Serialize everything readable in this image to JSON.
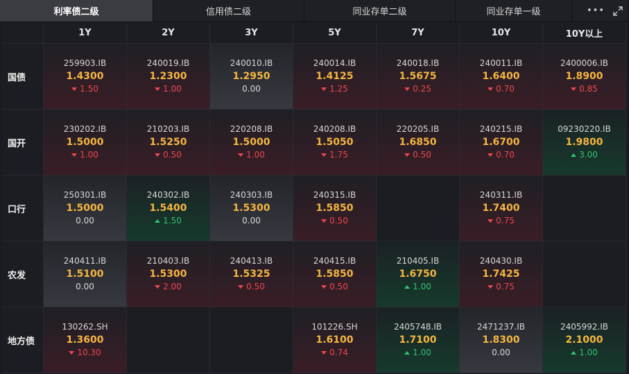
{
  "tabs": [
    {
      "label": "利率债二级",
      "active": true
    },
    {
      "label": "信用债二级",
      "active": false
    },
    {
      "label": "同业存单二级",
      "active": false
    },
    {
      "label": "同业存单一级",
      "active": false
    }
  ],
  "toolbar": {
    "more_label": "•••"
  },
  "columns": [
    "1Y",
    "2Y",
    "3Y",
    "5Y",
    "7Y",
    "10Y",
    "10Y以上"
  ],
  "rows": [
    {
      "label": "国债",
      "cells": [
        {
          "code": "259903.IB",
          "yield": "1.4300",
          "change": "1.50",
          "dir": "down"
        },
        {
          "code": "240019.IB",
          "yield": "1.2300",
          "change": "1.00",
          "dir": "down"
        },
        {
          "code": "240010.IB",
          "yield": "1.2950",
          "change": "0.00",
          "dir": "flat"
        },
        {
          "code": "240014.IB",
          "yield": "1.4125",
          "change": "1.25",
          "dir": "down"
        },
        {
          "code": "240018.IB",
          "yield": "1.5675",
          "change": "0.25",
          "dir": "down"
        },
        {
          "code": "240011.IB",
          "yield": "1.6400",
          "change": "0.70",
          "dir": "down"
        },
        {
          "code": "2400006.IB",
          "yield": "1.8900",
          "change": "0.85",
          "dir": "down"
        }
      ]
    },
    {
      "label": "国开",
      "cells": [
        {
          "code": "230202.IB",
          "yield": "1.5000",
          "change": "1.00",
          "dir": "down"
        },
        {
          "code": "210203.IB",
          "yield": "1.5250",
          "change": "0.50",
          "dir": "down"
        },
        {
          "code": "220208.IB",
          "yield": "1.5000",
          "change": "1.00",
          "dir": "down"
        },
        {
          "code": "240208.IB",
          "yield": "1.5050",
          "change": "1.75",
          "dir": "down"
        },
        {
          "code": "220205.IB",
          "yield": "1.6850",
          "change": "0.50",
          "dir": "down"
        },
        {
          "code": "240215.IB",
          "yield": "1.6700",
          "change": "0.70",
          "dir": "down"
        },
        {
          "code": "09230220.IB",
          "yield": "1.9800",
          "change": "3.00",
          "dir": "up"
        }
      ]
    },
    {
      "label": "口行",
      "cells": [
        {
          "code": "250301.IB",
          "yield": "1.5000",
          "change": "0.00",
          "dir": "flat"
        },
        {
          "code": "240302.IB",
          "yield": "1.5400",
          "change": "1.50",
          "dir": "up"
        },
        {
          "code": "240303.IB",
          "yield": "1.5300",
          "change": "0.00",
          "dir": "flat"
        },
        {
          "code": "240315.IB",
          "yield": "1.5850",
          "change": "0.50",
          "dir": "down"
        },
        null,
        {
          "code": "240311.IB",
          "yield": "1.7400",
          "change": "0.75",
          "dir": "down"
        },
        null
      ]
    },
    {
      "label": "农发",
      "cells": [
        {
          "code": "240411.IB",
          "yield": "1.5100",
          "change": "0.00",
          "dir": "flat"
        },
        {
          "code": "210403.IB",
          "yield": "1.5300",
          "change": "2.00",
          "dir": "down"
        },
        {
          "code": "240413.IB",
          "yield": "1.5325",
          "change": "0.50",
          "dir": "down"
        },
        {
          "code": "240415.IB",
          "yield": "1.5850",
          "change": "0.50",
          "dir": "down"
        },
        {
          "code": "210405.IB",
          "yield": "1.6750",
          "change": "1.00",
          "dir": "up"
        },
        {
          "code": "240430.IB",
          "yield": "1.7425",
          "change": "0.75",
          "dir": "down"
        },
        null
      ]
    },
    {
      "label": "地方债",
      "cells": [
        {
          "code": "130262.SH",
          "yield": "1.3600",
          "change": "10.30",
          "dir": "down"
        },
        null,
        null,
        {
          "code": "101226.SH",
          "yield": "1.6100",
          "change": "0.74",
          "dir": "down"
        },
        {
          "code": "2405748.IB",
          "yield": "1.7100",
          "change": "1.00",
          "dir": "up"
        },
        {
          "code": "2471237.IB",
          "yield": "1.8300",
          "change": "0.00",
          "dir": "flat"
        },
        {
          "code": "2405992.IB",
          "yield": "2.1000",
          "change": "1.00",
          "dir": "up"
        }
      ]
    }
  ],
  "colors": {
    "yield": "#f5b640",
    "down": "#f0464f",
    "up": "#2fc46f",
    "accent_tab": "#3b3c42"
  }
}
